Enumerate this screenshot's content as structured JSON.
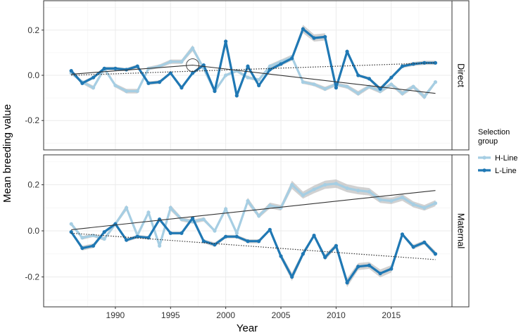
{
  "chart_data": {
    "type": "line",
    "xlabel": "Year",
    "ylabel": "Mean breeding value",
    "xlim": [
      1983.5,
      2020.5
    ],
    "ylim": [
      -0.33,
      0.33
    ],
    "x_ticks": [
      "1990",
      "1995",
      "2000",
      "2005",
      "2010",
      "2015"
    ],
    "y_ticks": [
      "-0.2",
      "0.0",
      "0.2"
    ],
    "grid": true,
    "legend": {
      "title_line1": "Selection",
      "title_line2": "group",
      "placement": "right",
      "entries": [
        "H-Line",
        "L-Line"
      ]
    },
    "colors": {
      "h_line": "#a6cee3",
      "l_line": "#1f78b4",
      "ribbon": "#bdbdbd",
      "trend": "#333333",
      "grid": "#ebebeb",
      "strip": "#ffffff"
    },
    "x": [
      1986,
      1987,
      1988,
      1989,
      1990,
      1991,
      1992,
      1993,
      1994,
      1995,
      1996,
      1997,
      1998,
      1999,
      2000,
      2001,
      2002,
      2003,
      2004,
      2005,
      2006,
      2007,
      2008,
      2009,
      2010,
      2011,
      2012,
      2013,
      2014,
      2015,
      2016,
      2017,
      2018,
      2019
    ],
    "panels": [
      {
        "strip": "Direct",
        "series": [
          {
            "name": "H-Line",
            "values": [
              0.01,
              -0.03,
              -0.055,
              0.03,
              -0.045,
              -0.07,
              -0.07,
              0.03,
              0.04,
              0.06,
              0.06,
              0.12,
              0.03,
              -0.07,
              0.0,
              0.02,
              -0.01,
              -0.02,
              0.04,
              0.06,
              0.08,
              -0.03,
              -0.04,
              -0.06,
              -0.04,
              -0.05,
              -0.08,
              -0.05,
              -0.07,
              -0.04,
              -0.08,
              -0.05,
              -0.095,
              -0.03
            ]
          },
          {
            "name": "L-Line",
            "values": [
              0.02,
              -0.035,
              -0.01,
              0.03,
              0.03,
              0.025,
              0.04,
              -0.035,
              -0.03,
              0.01,
              -0.055,
              0.01,
              0.045,
              -0.07,
              0.15,
              -0.09,
              0.04,
              -0.045,
              0.025,
              0.05,
              0.075,
              0.205,
              0.165,
              0.17,
              -0.055,
              0.105,
              0.0,
              -0.015,
              -0.06,
              -0.01,
              0.04,
              0.05,
              0.055,
              0.055
            ]
          }
        ],
        "trends": [
          {
            "series": "H-Line",
            "style": "solid",
            "x": [
              1986,
              1997,
              2019
            ],
            "y": [
              0.005,
              0.045,
              -0.08
            ]
          },
          {
            "series": "L-Line",
            "style": "dotted",
            "x": [
              1986,
              2019
            ],
            "y": [
              0.0,
              0.055
            ]
          }
        ],
        "marker": {
          "type": "circle",
          "x": 1997,
          "y": 0.045
        }
      },
      {
        "strip": "Maternal",
        "series": [
          {
            "name": "H-Line",
            "values": [
              0.03,
              -0.03,
              -0.02,
              -0.035,
              0.03,
              0.1,
              -0.02,
              0.08,
              -0.065,
              0.1,
              0.05,
              0.04,
              0.05,
              0.0,
              0.095,
              -0.01,
              0.13,
              0.065,
              0.11,
              0.1,
              0.2,
              0.155,
              0.18,
              0.2,
              0.205,
              0.185,
              0.175,
              0.17,
              0.135,
              0.13,
              0.145,
              0.115,
              0.1,
              0.12
            ]
          },
          {
            "name": "L-Line",
            "values": [
              -0.005,
              -0.075,
              -0.065,
              -0.005,
              0.03,
              -0.04,
              -0.025,
              -0.03,
              0.05,
              -0.01,
              -0.01,
              0.055,
              -0.045,
              -0.06,
              -0.025,
              -0.025,
              -0.045,
              -0.045,
              0.005,
              -0.11,
              -0.2,
              -0.1,
              -0.02,
              -0.115,
              -0.065,
              -0.225,
              -0.155,
              -0.15,
              -0.185,
              -0.165,
              -0.015,
              -0.07,
              -0.05,
              -0.1
            ]
          }
        ],
        "trends": [
          {
            "series": "H-Line",
            "style": "solid",
            "x": [
              1986,
              2019
            ],
            "y": [
              0.005,
              0.175
            ]
          },
          {
            "series": "L-Line",
            "style": "dotted",
            "x": [
              1986,
              2019
            ],
            "y": [
              -0.01,
              -0.125
            ]
          }
        ]
      }
    ]
  }
}
